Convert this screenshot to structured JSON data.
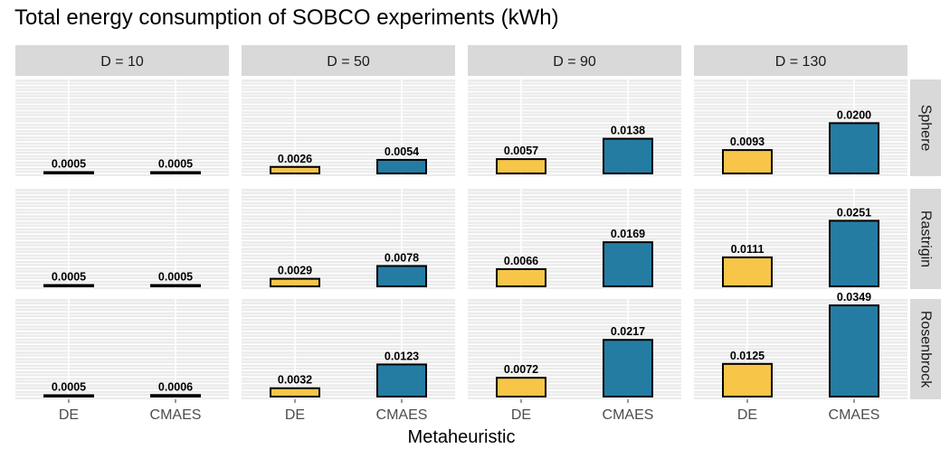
{
  "chart_data": {
    "type": "bar",
    "title": "Total energy consumption of SOBCO experiments (kWh)",
    "xlabel": "Metaheuristic",
    "ylabel": "",
    "categories": [
      "DE",
      "CMAES"
    ],
    "facet_columns": [
      "D = 10",
      "D = 50",
      "D = 90",
      "D = 130"
    ],
    "facet_rows": [
      "Sphere",
      "Rastrigin",
      "Rosenbrock"
    ],
    "ylim": [
      0,
      0.0349
    ],
    "grid": true,
    "legend": "none",
    "colors": {
      "DE": "#F7C548",
      "CMAES": "#257CA3"
    },
    "panels": [
      {
        "row": "Sphere",
        "column": "D = 10",
        "values": [
          0.0005,
          0.0005
        ],
        "labels": [
          "0.0005",
          "0.0005"
        ]
      },
      {
        "row": "Sphere",
        "column": "D = 50",
        "values": [
          0.0026,
          0.0054
        ],
        "labels": [
          "0.0026",
          "0.0054"
        ]
      },
      {
        "row": "Sphere",
        "column": "D = 90",
        "values": [
          0.0057,
          0.0138
        ],
        "labels": [
          "0.0057",
          "0.0138"
        ]
      },
      {
        "row": "Sphere",
        "column": "D = 130",
        "values": [
          0.0093,
          0.02
        ],
        "labels": [
          "0.0093",
          "0.0200"
        ]
      },
      {
        "row": "Rastrigin",
        "column": "D = 10",
        "values": [
          0.0005,
          0.0005
        ],
        "labels": [
          "0.0005",
          "0.0005"
        ]
      },
      {
        "row": "Rastrigin",
        "column": "D = 50",
        "values": [
          0.0029,
          0.0078
        ],
        "labels": [
          "0.0029",
          "0.0078"
        ]
      },
      {
        "row": "Rastrigin",
        "column": "D = 90",
        "values": [
          0.0066,
          0.0169
        ],
        "labels": [
          "0.0066",
          "0.0169"
        ]
      },
      {
        "row": "Rastrigin",
        "column": "D = 130",
        "values": [
          0.0111,
          0.0251
        ],
        "labels": [
          "0.0111",
          "0.0251"
        ]
      },
      {
        "row": "Rosenbrock",
        "column": "D = 10",
        "values": [
          0.0005,
          0.0006
        ],
        "labels": [
          "0.0005",
          "0.0006"
        ]
      },
      {
        "row": "Rosenbrock",
        "column": "D = 50",
        "values": [
          0.0032,
          0.0123
        ],
        "labels": [
          "0.0032",
          "0.0123"
        ]
      },
      {
        "row": "Rosenbrock",
        "column": "D = 90",
        "values": [
          0.0072,
          0.0217
        ],
        "labels": [
          "0.0072",
          "0.0217"
        ]
      },
      {
        "row": "Rosenbrock",
        "column": "D = 130",
        "values": [
          0.0125,
          0.0349
        ],
        "labels": [
          "0.0125",
          "0.0349"
        ]
      }
    ]
  }
}
